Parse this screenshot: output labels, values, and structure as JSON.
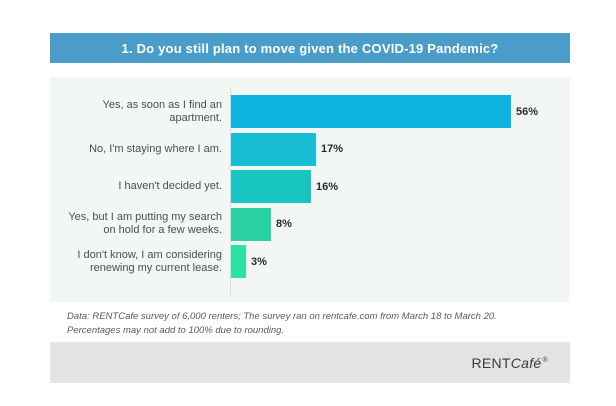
{
  "header": {
    "title": "1. Do you still plan to move given the COVID-19 Pandemic?"
  },
  "chart_data": {
    "type": "bar",
    "orientation": "horizontal",
    "title": "1. Do you still plan to move given the COVID-19 Pandemic?",
    "categories": [
      "Yes, as soon as I find an apartment.",
      "No, I'm staying where I am.",
      "I haven't decided yet.",
      "Yes, but I am putting my search on hold for a few weeks.",
      "I don't know, I am considering renewing my current lease."
    ],
    "values": [
      56,
      17,
      16,
      8,
      3
    ],
    "value_labels": [
      "56%",
      "17%",
      "16%",
      "8%",
      "3%"
    ],
    "bar_colors": [
      "#0db2e0",
      "#16bdd3",
      "#18c5c0",
      "#2bd1a4",
      "#2ce1a1"
    ],
    "xlabel": "",
    "ylabel": "",
    "xlim": [
      0,
      60
    ],
    "grid": false,
    "legend": false,
    "data_labels": true
  },
  "footnote": {
    "line1": "Data: RENTCafe survey of 6,000 renters; The survey ran on rentcafe.com from March 18 to March 20.",
    "line2": "Percentages may not add to 100% due to rounding."
  },
  "footer": {
    "logo_rent": "RENT",
    "logo_cafe": "Café",
    "logo_reg": "®"
  },
  "colors": {
    "title_bar_bg": "#4a9cc9",
    "title_text": "#ffffff",
    "card_bg": "#f3f7f4",
    "footer_bg": "#e3e3e3",
    "label_text": "#4d4d4d",
    "value_text": "#2b2b2b",
    "footnote_text": "#5a5a5a",
    "logo_text": "#3b3b3b",
    "axis_line": "#d8ddd9"
  }
}
